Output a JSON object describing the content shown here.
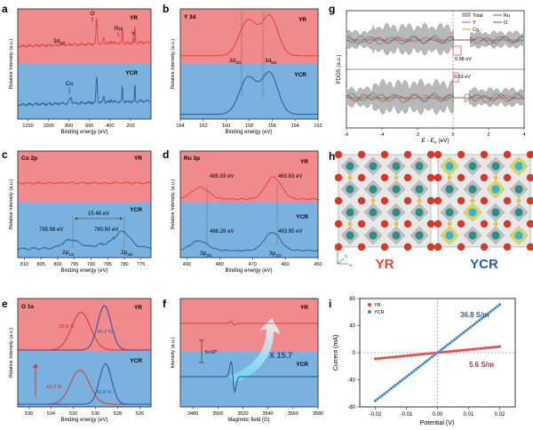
{
  "colors": {
    "pink": "#f08a8c",
    "blue": "#7ab1df",
    "red": "#e0433d",
    "navy": "#1f5f9e",
    "darkred": "#c03030",
    "darkblue": "#2a5fa8",
    "axis": "#222222",
    "teal": "#4aa8a0",
    "orange": "#e7a23a"
  },
  "chart_data": [
    {
      "id": "a",
      "type": "line",
      "panel_label": "a",
      "xlabel": "Binding energy (eV)",
      "ylabel": "Relative Intensity (a.u.)",
      "xlim": [
        1300,
        0
      ],
      "xticks": [
        "1200",
        "1000",
        "800",
        "600",
        "400",
        "200"
      ],
      "series": [
        {
          "name": "YR",
          "peaks": [
            "O",
            "Ru",
            "Y"
          ],
          "sub_label": "3d5/2"
        },
        {
          "name": "YCR",
          "peaks": [
            "Co"
          ]
        }
      ],
      "labels": {
        "tag_top": "YR",
        "tag_bottom": "YCR",
        "peak_o": "O",
        "peak_ru": "Ru",
        "peak_y": "Y",
        "peak_co": "Co",
        "sub_main": "3d",
        "sub_sub": "5/2"
      }
    },
    {
      "id": "b",
      "type": "line",
      "panel_label": "b",
      "title": "Y 3d",
      "xlabel": "Binding energy (eV)",
      "ylabel": "Relative Intensity (a.u.)",
      "xlim": [
        164,
        152
      ],
      "xticks": [
        "164",
        "162",
        "160",
        "158",
        "156",
        "154",
        "152"
      ],
      "series": [
        {
          "name": "YR",
          "peaks_eV": [
            158.1,
            156.2
          ]
        },
        {
          "name": "YCR",
          "peaks_eV": [
            158.1,
            156.2
          ]
        }
      ],
      "labels": {
        "tag_top": "YR",
        "tag_bottom": "YCR",
        "p1_main": "3d",
        "p1_sub": "3/2",
        "p2_main": "3d",
        "p2_sub": "5/2"
      }
    },
    {
      "id": "c",
      "type": "line",
      "panel_label": "c",
      "title": "Co 2p",
      "xlabel": "Binding energy (eV)",
      "ylabel": "Relative Intensity (a.u.)",
      "xlim": [
        812,
        772
      ],
      "xticks": [
        "810",
        "805",
        "800",
        "795",
        "790",
        "785",
        "780",
        "775"
      ],
      "series": [
        {
          "name": "YR",
          "peaks_eV": []
        },
        {
          "name": "YCR",
          "peaks_eV": [
            795.98,
            780.5
          ]
        }
      ],
      "annotations": {
        "split": "15.48 eV",
        "peak1": "795.98 eV",
        "peak2": "780.50 eV"
      },
      "labels": {
        "tag_top": "YR",
        "tag_bottom": "YCR",
        "p1_main": "2p",
        "p1_sub": "1/2",
        "p2_main": "2p",
        "p2_sub": "3/2"
      }
    },
    {
      "id": "d",
      "type": "line",
      "panel_label": "d",
      "title": "Ru 3p",
      "xlabel": "Binding energy (eV)",
      "ylabel": "Relative Intensity (a.u.)",
      "xlim": [
        492,
        450
      ],
      "xticks": [
        "490",
        "480",
        "470",
        "460",
        "450"
      ],
      "series": [
        {
          "name": "YR",
          "peaks_eV": [
            485.93,
            463.63
          ]
        },
        {
          "name": "YCR",
          "peaks_eV": [
            486.28,
            463.95
          ]
        }
      ],
      "annotations": {
        "yr1": "485.93 eV",
        "yr2": "463.63 eV",
        "ycr1": "486.28 eV",
        "ycr2": "463.95 eV"
      },
      "labels": {
        "tag_top": "YR",
        "tag_bottom": "YCR",
        "p1_main": "3p",
        "p1_sub": "3/2",
        "p2_main": "3p",
        "p2_sub": "1/2"
      }
    },
    {
      "id": "e",
      "type": "line",
      "panel_label": "e",
      "title": "O 1s",
      "xlabel": "Binding energy (eV)",
      "ylabel": "Relative Intensity (a.u.)",
      "xlim": [
        537,
        525
      ],
      "xticks": [
        "536",
        "534",
        "532",
        "530",
        "528",
        "526"
      ],
      "series": [
        {
          "name": "YR",
          "components": [
            {
              "center": 531.3,
              "percent": "53.8 %"
            },
            {
              "center": 529.2,
              "percent": "46.2 %"
            }
          ]
        },
        {
          "name": "YCR",
          "components": [
            {
              "center": 531.4,
              "percent": "63.2 %"
            },
            {
              "center": 529.1,
              "percent": "36.8 %"
            }
          ]
        }
      ],
      "labels": {
        "tag_top": "YR",
        "tag_bottom": "YCR"
      }
    },
    {
      "id": "f",
      "type": "line",
      "panel_label": "f",
      "xlabel": "Magnetic field (G)",
      "ylabel": "Intensity (a.u.)",
      "xlim": [
        3470,
        3580
      ],
      "xticks": [
        "3480",
        "3500",
        "3520",
        "3540",
        "3560",
        "3580"
      ],
      "series": [
        {
          "name": "YR"
        },
        {
          "name": "YCR"
        }
      ],
      "annotations": {
        "scale_main": "5×10",
        "scale_exp": "6",
        "ratio": "X 15.7"
      },
      "labels": {
        "tag_top": "YR",
        "tag_bottom": "YCR"
      }
    },
    {
      "id": "g",
      "type": "area",
      "panel_label": "g",
      "xlabel": "E - E",
      "xlabel_sub": "F",
      "xlabel_unit": " (eV)",
      "ylabel": "PDOS (a.u.)",
      "xlim": [
        -6,
        4
      ],
      "xticks": [
        "-6",
        "-4",
        "-2",
        "0",
        "2",
        "4"
      ],
      "legend": [
        "Total",
        "Ru",
        "Y",
        "O",
        "Co"
      ],
      "annotations": {
        "gap_top": "0.98 eV",
        "gap_bottom": "0.63 eV"
      }
    },
    {
      "id": "h",
      "type": "diagram",
      "panel_label": "h",
      "structures": [
        "YR",
        "YCR"
      ],
      "axes": {
        "a": "a",
        "b": "b",
        "c": "c"
      }
    },
    {
      "id": "i",
      "type": "scatter",
      "panel_label": "i",
      "xlabel": "Potential (V)",
      "ylabel": "Current (mA)",
      "xlim": [
        -0.025,
        0.025
      ],
      "ylim": [
        -80,
        80
      ],
      "xticks": [
        "-0.02",
        "-0.01",
        "0.00",
        "0.01",
        "0.02"
      ],
      "yticks": [
        "80",
        "40",
        "0",
        "-40",
        "-80"
      ],
      "series": [
        {
          "name": "YR",
          "x_range": [
            -0.02,
            0.02
          ],
          "y_range": [
            -9,
            9
          ],
          "conductivity": "5.6 S/m"
        },
        {
          "name": "YCR",
          "x_range": [
            -0.02,
            0.02
          ],
          "y_range": [
            -71,
            71
          ],
          "conductivity": "36.8 S/m"
        }
      ]
    }
  ]
}
